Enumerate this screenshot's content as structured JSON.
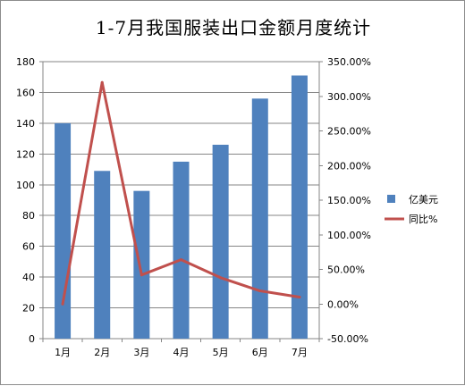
{
  "chart_data": {
    "type": "bar",
    "title": "1-7月我国服装出口金额月度统计",
    "categories": [
      "1月",
      "2月",
      "3月",
      "4月",
      "5月",
      "6月",
      "7月"
    ],
    "series": [
      {
        "name": "亿美元",
        "type": "bar",
        "axis": "left",
        "color": "#4f81bd",
        "values": [
          140,
          109,
          96,
          115,
          126,
          156,
          171
        ]
      },
      {
        "name": "同比%",
        "type": "line",
        "axis": "right",
        "color": "#c0504d",
        "values": [
          0,
          320,
          42,
          64,
          38,
          19,
          10
        ]
      }
    ],
    "y_left": {
      "min": 0,
      "max": 180,
      "step": 20,
      "tick_labels": [
        "0",
        "20",
        "40",
        "60",
        "80",
        "100",
        "120",
        "140",
        "160",
        "180"
      ]
    },
    "y_right": {
      "min": -50,
      "max": 350,
      "step": 50,
      "tick_labels": [
        "-50.00%",
        "0.00%",
        "50.00%",
        "100.00%",
        "150.00%",
        "200.00%",
        "250.00%",
        "300.00%",
        "350.00%"
      ]
    },
    "grid": true,
    "legend": {
      "position": "right",
      "entries": [
        "亿美元",
        "同比%"
      ]
    }
  }
}
